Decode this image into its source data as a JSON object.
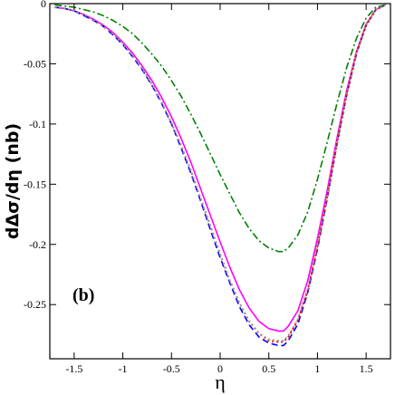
{
  "chart_data": {
    "type": "line",
    "ylabel": "dΔσ/dη (nb)",
    "xlabel": "η",
    "annotation": "(b)",
    "xlim": [
      -1.75,
      1.75
    ],
    "ylim": [
      -0.295,
      0.0
    ],
    "x_ticks": [
      -1.5,
      -1,
      -0.5,
      0,
      0.5,
      1,
      1.5
    ],
    "x_tick_labels": [
      "-1.5",
      "-1",
      "-0.5",
      "0",
      "0.5",
      "1",
      "1.5"
    ],
    "y_ticks": [
      0,
      -0.05,
      -0.1,
      -0.15,
      -0.2,
      -0.25
    ],
    "y_tick_labels": [
      "0",
      "-0.05",
      "-0.1",
      "-0.15",
      "-0.2",
      "-0.25"
    ],
    "grid": false,
    "x": [
      -1.7,
      -1.6,
      -1.5,
      -1.4,
      -1.3,
      -1.2,
      -1.1,
      -1.0,
      -0.9,
      -0.8,
      -0.7,
      -0.6,
      -0.5,
      -0.4,
      -0.3,
      -0.2,
      -0.1,
      0.0,
      0.1,
      0.2,
      0.3,
      0.4,
      0.5,
      0.6,
      0.65,
      0.7,
      0.8,
      0.9,
      1.0,
      1.1,
      1.2,
      1.3,
      1.4,
      1.5,
      1.6,
      1.7
    ],
    "series": [
      {
        "color": "#ff00ff",
        "style": "solid",
        "values": [
          -0.003,
          -0.004,
          -0.006,
          -0.009,
          -0.013,
          -0.018,
          -0.024,
          -0.032,
          -0.041,
          -0.052,
          -0.064,
          -0.078,
          -0.094,
          -0.112,
          -0.132,
          -0.154,
          -0.176,
          -0.198,
          -0.219,
          -0.238,
          -0.253,
          -0.264,
          -0.27,
          -0.272,
          -0.272,
          -0.268,
          -0.255,
          -0.23,
          -0.195,
          -0.155,
          -0.112,
          -0.072,
          -0.04,
          -0.017,
          -0.005,
          -0.001
        ]
      },
      {
        "color": "#0000ff",
        "style": "dashed",
        "values": [
          -0.003,
          -0.004,
          -0.006,
          -0.01,
          -0.014,
          -0.019,
          -0.026,
          -0.034,
          -0.044,
          -0.055,
          -0.068,
          -0.083,
          -0.1,
          -0.12,
          -0.141,
          -0.164,
          -0.188,
          -0.211,
          -0.232,
          -0.252,
          -0.267,
          -0.277,
          -0.282,
          -0.284,
          -0.284,
          -0.28,
          -0.266,
          -0.24,
          -0.204,
          -0.162,
          -0.117,
          -0.076,
          -0.042,
          -0.018,
          -0.005,
          -0.001
        ]
      },
      {
        "color": "#ff0000",
        "style": "dotted",
        "values": [
          -0.003,
          -0.004,
          -0.006,
          -0.009,
          -0.014,
          -0.019,
          -0.025,
          -0.033,
          -0.043,
          -0.054,
          -0.067,
          -0.082,
          -0.099,
          -0.118,
          -0.139,
          -0.162,
          -0.185,
          -0.208,
          -0.23,
          -0.249,
          -0.264,
          -0.274,
          -0.28,
          -0.281,
          -0.281,
          -0.277,
          -0.263,
          -0.238,
          -0.202,
          -0.16,
          -0.116,
          -0.075,
          -0.041,
          -0.018,
          -0.005,
          -0.001
        ]
      },
      {
        "color": "#008000",
        "style": "dash-dot",
        "values": [
          -0.001,
          -0.002,
          -0.003,
          -0.005,
          -0.007,
          -0.01,
          -0.014,
          -0.019,
          -0.025,
          -0.033,
          -0.042,
          -0.052,
          -0.064,
          -0.077,
          -0.092,
          -0.108,
          -0.125,
          -0.142,
          -0.158,
          -0.174,
          -0.187,
          -0.197,
          -0.203,
          -0.206,
          -0.206,
          -0.203,
          -0.192,
          -0.173,
          -0.146,
          -0.115,
          -0.083,
          -0.053,
          -0.029,
          -0.012,
          -0.003,
          -0.001
        ]
      },
      {
        "color": "#999999",
        "style": "dotted",
        "values": [
          -0.003,
          -0.004,
          -0.006,
          -0.009,
          -0.014,
          -0.019,
          -0.025,
          -0.033,
          -0.043,
          -0.054,
          -0.067,
          -0.082,
          -0.099,
          -0.118,
          -0.139,
          -0.162,
          -0.185,
          -0.208,
          -0.23,
          -0.249,
          -0.264,
          -0.274,
          -0.279,
          -0.28,
          -0.28,
          -0.276,
          -0.262,
          -0.237,
          -0.201,
          -0.16,
          -0.116,
          -0.075,
          -0.041,
          -0.018,
          -0.005,
          -0.001
        ]
      }
    ]
  }
}
